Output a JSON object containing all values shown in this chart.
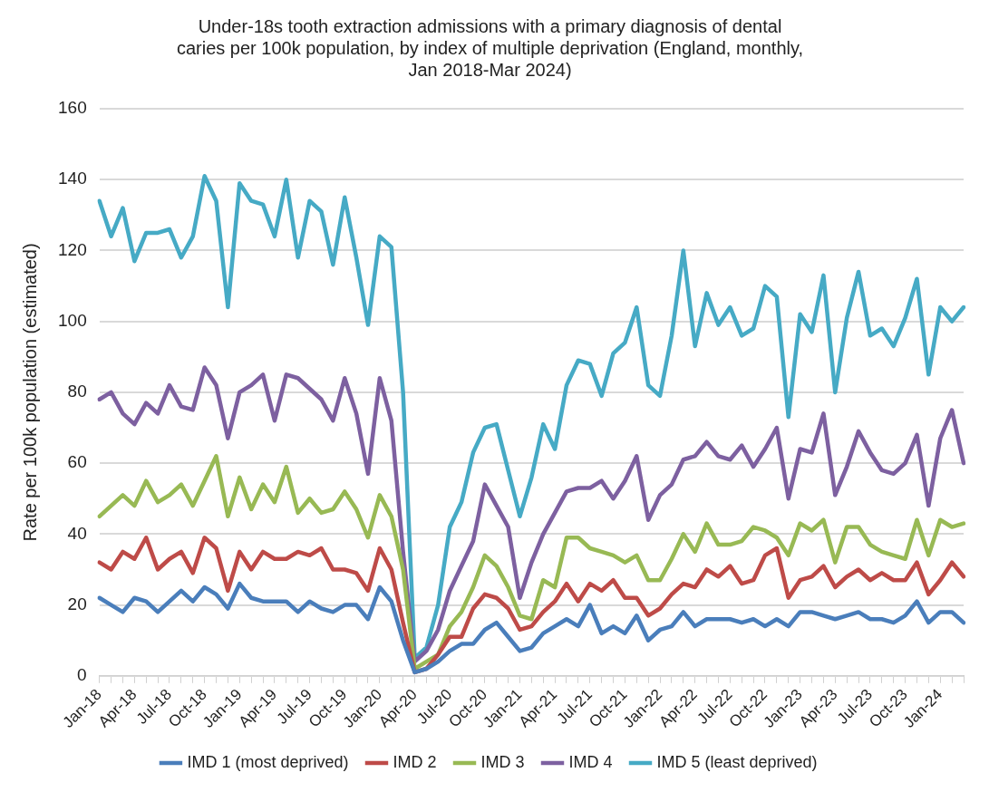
{
  "chart_data": {
    "type": "line",
    "title": [
      "Under-18s tooth extraction admissions with a primary diagnosis of dental",
      "caries per 100k population, by index of multiple deprivation (England, monthly,",
      "Jan 2018-Mar 2024)"
    ],
    "ylabel": "Rate per 100k population (estimated)",
    "categories": [
      "Jan-18",
      null,
      null,
      "Apr-18",
      null,
      null,
      "Jul-18",
      null,
      null,
      "Oct-18",
      null,
      null,
      "Jan-19",
      null,
      null,
      "Apr-19",
      null,
      null,
      "Jul-19",
      null,
      null,
      "Oct-19",
      null,
      null,
      "Jan-20",
      null,
      null,
      "Apr-20",
      null,
      null,
      "Jul-20",
      null,
      null,
      "Oct-20",
      null,
      null,
      "Jan-21",
      null,
      null,
      "Apr-21",
      null,
      null,
      "Jul-21",
      null,
      null,
      "Oct-21",
      null,
      null,
      "Jan-22",
      null,
      null,
      "Apr-22",
      null,
      null,
      "Jul-22",
      null,
      null,
      "Oct-22",
      null,
      null,
      "Jan-23",
      null,
      null,
      "Apr-23",
      null,
      null,
      "Jul-23",
      null,
      null,
      "Oct-23",
      null,
      null,
      "Jan-24",
      null,
      null
    ],
    "series": [
      {
        "name": "IMD 1 (most deprived)",
        "color": "#4a7ebb",
        "values": [
          22,
          20,
          18,
          22,
          21,
          18,
          21,
          24,
          21,
          25,
          23,
          19,
          26,
          22,
          21,
          21,
          21,
          18,
          21,
          19,
          18,
          20,
          20,
          16,
          25,
          21,
          10,
          1,
          2,
          4,
          7,
          9,
          9,
          13,
          15,
          11,
          7,
          8,
          12,
          14,
          16,
          14,
          20,
          12,
          14,
          12,
          17,
          10,
          13,
          14,
          18,
          14,
          16,
          16,
          16,
          15,
          16,
          14,
          16,
          14,
          18,
          18,
          17,
          16,
          17,
          18,
          16,
          16,
          15,
          17,
          21,
          15,
          18,
          18,
          15
        ]
      },
      {
        "name": "IMD 2",
        "color": "#be4b48",
        "values": [
          32,
          30,
          35,
          33,
          39,
          30,
          33,
          35,
          29,
          39,
          36,
          24,
          35,
          30,
          35,
          33,
          33,
          35,
          34,
          36,
          30,
          30,
          29,
          24,
          36,
          30,
          15,
          1,
          2,
          6,
          11,
          11,
          19,
          23,
          22,
          19,
          13,
          14,
          18,
          21,
          26,
          21,
          26,
          24,
          27,
          22,
          22,
          17,
          19,
          23,
          26,
          25,
          30,
          28,
          31,
          26,
          27,
          34,
          36,
          22,
          27,
          28,
          31,
          25,
          28,
          30,
          27,
          29,
          27,
          27,
          32,
          23,
          27,
          32,
          28
        ]
      },
      {
        "name": "IMD 3",
        "color": "#98b954",
        "values": [
          45,
          48,
          51,
          48,
          55,
          49,
          51,
          54,
          48,
          55,
          62,
          45,
          56,
          47,
          54,
          49,
          59,
          46,
          50,
          46,
          47,
          52,
          47,
          39,
          51,
          45,
          30,
          2,
          4,
          6,
          14,
          18,
          25,
          34,
          31,
          25,
          17,
          16,
          27,
          25,
          39,
          39,
          36,
          35,
          34,
          32,
          34,
          27,
          27,
          33,
          40,
          35,
          43,
          37,
          37,
          38,
          42,
          41,
          39,
          34,
          43,
          41,
          44,
          32,
          42,
          42,
          37,
          35,
          34,
          33,
          44,
          34,
          44,
          42,
          43
        ]
      },
      {
        "name": "IMD 4",
        "color": "#7d60a0",
        "values": [
          78,
          80,
          74,
          71,
          77,
          74,
          82,
          76,
          75,
          87,
          82,
          67,
          80,
          82,
          85,
          72,
          85,
          84,
          81,
          78,
          72,
          84,
          74,
          57,
          84,
          72,
          35,
          4,
          7,
          13,
          24,
          31,
          38,
          54,
          48,
          42,
          22,
          32,
          40,
          46,
          52,
          53,
          53,
          55,
          50,
          55,
          62,
          44,
          51,
          54,
          61,
          62,
          66,
          62,
          61,
          65,
          59,
          64,
          70,
          50,
          64,
          63,
          74,
          51,
          59,
          69,
          63,
          58,
          57,
          60,
          68,
          48,
          67,
          75,
          60
        ]
      },
      {
        "name": "IMD 5 (least deprived)",
        "color": "#46aac5",
        "values": [
          134,
          124,
          132,
          117,
          125,
          125,
          126,
          118,
          124,
          141,
          134,
          104,
          139,
          134,
          133,
          124,
          140,
          118,
          134,
          131,
          116,
          135,
          118,
          99,
          124,
          121,
          80,
          5,
          8,
          20,
          42,
          49,
          63,
          70,
          71,
          58,
          45,
          56,
          71,
          64,
          82,
          89,
          88,
          79,
          91,
          94,
          104,
          82,
          79,
          96,
          120,
          93,
          108,
          99,
          104,
          96,
          98,
          110,
          107,
          73,
          102,
          97,
          113,
          80,
          101,
          114,
          96,
          98,
          93,
          101,
          112,
          85,
          104,
          100,
          104
        ]
      }
    ],
    "ylim": [
      0,
      160
    ],
    "yticks": [
      0,
      20,
      40,
      60,
      80,
      100,
      120,
      140,
      160
    ],
    "grid": "y",
    "legend": "bottom",
    "marker": "none",
    "line_style": "solid"
  }
}
